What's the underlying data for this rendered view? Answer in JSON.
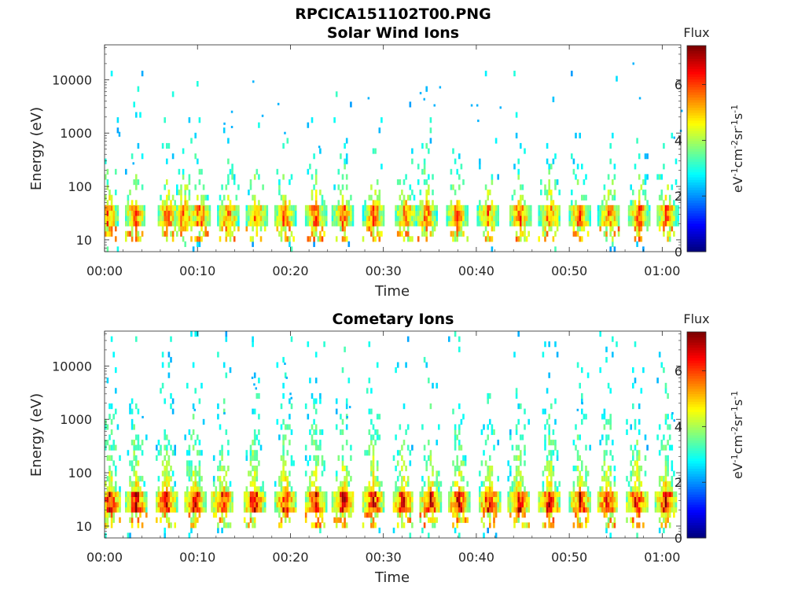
{
  "figure": {
    "title": "RPCICA151102T00.PNG"
  },
  "chart_data": [
    {
      "type": "heatmap",
      "title": "Solar Wind Ions",
      "xlabel": "Time",
      "ylabel": "Energy (eV)",
      "x_ticks": [
        "00:00",
        "00:10",
        "00:20",
        "00:30",
        "00:40",
        "00:50",
        "01:00"
      ],
      "x_tick_minutes": [
        0,
        10,
        20,
        30,
        40,
        50,
        60
      ],
      "xlim_minutes": [
        0,
        62
      ],
      "y_ticks": [
        "10",
        "100",
        "1000",
        "10000"
      ],
      "y_tick_values": [
        10,
        100,
        1000,
        10000
      ],
      "yscale": "log",
      "ylim": [
        6,
        45000
      ],
      "colorbar": {
        "label": "Flux",
        "unit": "eV-1cm-2sr-1s-1",
        "ticks": [
          "0",
          "2",
          "4",
          "6"
        ],
        "tick_values": [
          0,
          2,
          4,
          6
        ],
        "range": [
          0,
          7.4
        ],
        "colormap": "jet"
      },
      "bursts_minutes": [
        0.3,
        3.2,
        6.7,
        8.5,
        10.2,
        13.2,
        16.2,
        19.3,
        22.6,
        25.6,
        28.9,
        32.3,
        34.5,
        37.8,
        41.2,
        44.6,
        47.8,
        51.0,
        54.2,
        57.4,
        60.4
      ],
      "band_energy_eV": [
        18,
        45
      ],
      "band_peak_flux": 6.2,
      "sparse_high_energy_points": [
        {
          "t": 1.5,
          "e": 1000
        },
        {
          "t": 1.5,
          "e": 900
        },
        {
          "t": 3.0,
          "e": 270
        },
        {
          "t": 12.8,
          "e": 1500
        },
        {
          "t": 13.6,
          "e": 2500
        },
        {
          "t": 13.6,
          "e": 1300
        },
        {
          "t": 15.9,
          "e": 9200
        },
        {
          "t": 16.9,
          "e": 2100
        },
        {
          "t": 18.6,
          "e": 3500
        },
        {
          "t": 19.3,
          "e": 1000
        },
        {
          "t": 23.0,
          "e": 550
        },
        {
          "t": 28.3,
          "e": 4500
        },
        {
          "t": 33.9,
          "e": 5600
        },
        {
          "t": 34.3,
          "e": 4300
        },
        {
          "t": 35.4,
          "e": 3300
        },
        {
          "t": 36.0,
          "e": 7200
        },
        {
          "t": 39.4,
          "e": 3300
        },
        {
          "t": 40.0,
          "e": 3300
        },
        {
          "t": 40.1,
          "e": 1700
        },
        {
          "t": 42.5,
          "e": 3000
        },
        {
          "t": 56.8,
          "e": 20000
        },
        {
          "t": 57.5,
          "e": 4500
        },
        {
          "t": 61.2,
          "e": 820
        },
        {
          "t": 62.0,
          "e": 2600
        },
        {
          "t": 61.9,
          "e": 1100
        }
      ]
    },
    {
      "type": "heatmap",
      "title": "Cometary Ions",
      "xlabel": "Time",
      "ylabel": "Energy (eV)",
      "x_ticks": [
        "00:00",
        "00:10",
        "00:20",
        "00:30",
        "00:40",
        "00:50",
        "01:00"
      ],
      "x_tick_minutes": [
        0,
        10,
        20,
        30,
        40,
        50,
        60
      ],
      "xlim_minutes": [
        0,
        62
      ],
      "y_ticks": [
        "10",
        "100",
        "1000",
        "10000"
      ],
      "y_tick_values": [
        10,
        100,
        1000,
        10000
      ],
      "yscale": "log",
      "ylim": [
        6,
        45000
      ],
      "colorbar": {
        "label": "Flux",
        "unit": "eV-1cm-2sr-1s-1",
        "ticks": [
          "0",
          "2",
          "4",
          "6"
        ],
        "tick_values": [
          0,
          2,
          4,
          6
        ],
        "range": [
          0,
          7.4
        ],
        "colormap": "jet"
      },
      "bursts_minutes": [
        0.5,
        3.3,
        6.5,
        9.6,
        12.6,
        16.0,
        19.4,
        22.6,
        25.6,
        28.8,
        32.0,
        35.0,
        38.0,
        41.3,
        44.5,
        47.8,
        51.1,
        54.0,
        57.2,
        60.3
      ],
      "band_energy_eV": [
        18,
        45
      ],
      "band_peak_flux": 7.1,
      "sparse_high_energy_points": [
        {
          "t": 15.8,
          "e": 6000
        },
        {
          "t": 16.0,
          "e": 4500
        },
        {
          "t": 16.2,
          "e": 3800
        },
        {
          "t": 19.3,
          "e": 11000
        },
        {
          "t": 19.5,
          "e": 6000
        },
        {
          "t": 19.9,
          "e": 3000
        },
        {
          "t": 20.0,
          "e": 2500
        },
        {
          "t": 26.3,
          "e": 1700
        },
        {
          "t": 26.0,
          "e": 1100
        },
        {
          "t": 9.6,
          "e": 1500
        },
        {
          "t": 12.8,
          "e": 1300
        },
        {
          "t": 4.0,
          "e": 1100
        },
        {
          "t": 51.3,
          "e": 2000
        },
        {
          "t": 50.8,
          "e": 1500
        },
        {
          "t": 61.0,
          "e": 1300
        },
        {
          "t": 61.2,
          "e": 950
        }
      ]
    }
  ]
}
